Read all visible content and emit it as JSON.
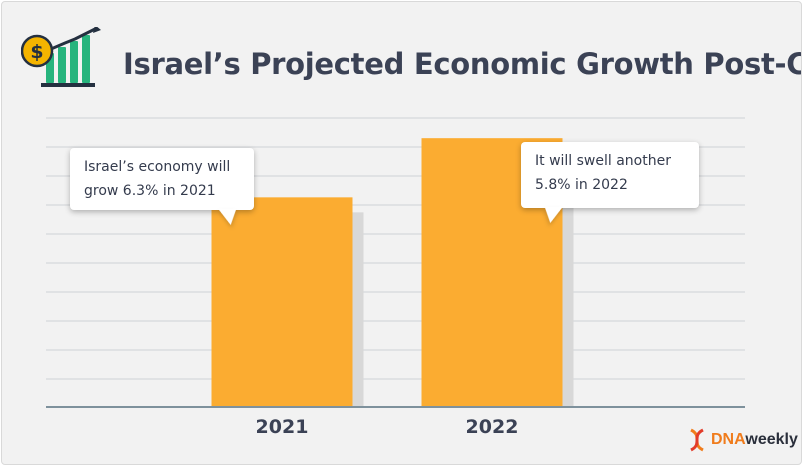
{
  "chart_data": {
    "type": "bar",
    "title": "Israel’s Projected Economic Growth Post-Covid",
    "categories": [
      "2021",
      "2022"
    ],
    "values": [
      6.3,
      5.8
    ],
    "annotations": [
      "Israel’s economy will grow 6.3% in 2021",
      "It will swell another 5.8% in 2022"
    ],
    "xlabel": "",
    "ylabel": "",
    "grid": true,
    "legend": "none"
  },
  "callouts": {
    "c2021": {
      "line1": "Israel’s economy will",
      "line2": "grow 6.3% in 2021"
    },
    "c2022": {
      "line1": "It will swell another",
      "line2": "5.8% in 2022"
    }
  },
  "colors": {
    "bar": "#fbac31",
    "bar_shadow": "#d8d8d8",
    "grid": "#cfd2d6",
    "axis": "#7e919c",
    "title": "#3b4255",
    "logo_accent": "#f07c1c"
  },
  "icons": {
    "title_icon": "money-growth-icon",
    "logo_icon": "dna-icon"
  },
  "logo": {
    "part1": "DNA",
    "part2": "weekly"
  }
}
